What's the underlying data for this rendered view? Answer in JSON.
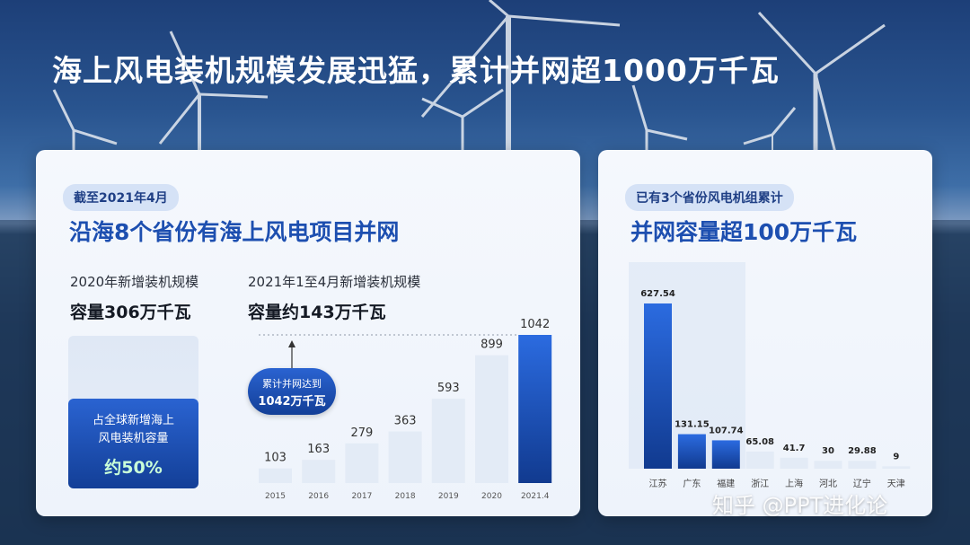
{
  "title": "海上风电装机规模发展迅猛，累计并网超1000万千瓦",
  "left_card": {
    "tag": "截至2021年4月",
    "headline": "沿海8个省份有海上风电项目并网",
    "sub_2020": "2020年新增装机规模",
    "value_2020": "容量306万千瓦",
    "sub_2021": "2021年1至4月新增装机规模",
    "value_2021": "容量约143万千瓦",
    "stat_label_line1": "占全球新增海上",
    "stat_label_line2": "风电装机容量",
    "stat_value": "约50%",
    "callout_line1": "累计并网达到",
    "callout_line2": "1042万千瓦"
  },
  "right_card": {
    "tag": "已有3个省份风电机组累计",
    "headline": "并网容量超100万千瓦"
  },
  "watermark": "知乎 @PPT进化论",
  "chart_data": [
    {
      "type": "bar",
      "categories": [
        "2015",
        "2016",
        "2017",
        "2018",
        "2019",
        "2020",
        "2021.4"
      ],
      "values": [
        103,
        163,
        279,
        363,
        593,
        899,
        1042
      ],
      "data_labels": [
        "103",
        "163",
        "279",
        "363",
        "593",
        "899",
        "1042"
      ],
      "ylim": [
        0,
        1042
      ],
      "colors": {
        "normal": "#e3ebf6",
        "highlight": "#1d4fb0"
      }
    },
    {
      "type": "bar",
      "categories": [
        "江苏",
        "广东",
        "福建",
        "浙江",
        "上海",
        "河北",
        "辽宁",
        "天津"
      ],
      "values": [
        627.54,
        131.15,
        107.74,
        65.08,
        41.7,
        30,
        29.88,
        9
      ],
      "data_labels": [
        "627.54",
        "131.15",
        "107.74",
        "65.08",
        "41.7",
        "30",
        "29.88",
        "9"
      ],
      "ylim": [
        0,
        627.54
      ],
      "colors": {
        "normal": "#e3ebf6",
        "highlight": "#1d4fb0"
      }
    }
  ]
}
